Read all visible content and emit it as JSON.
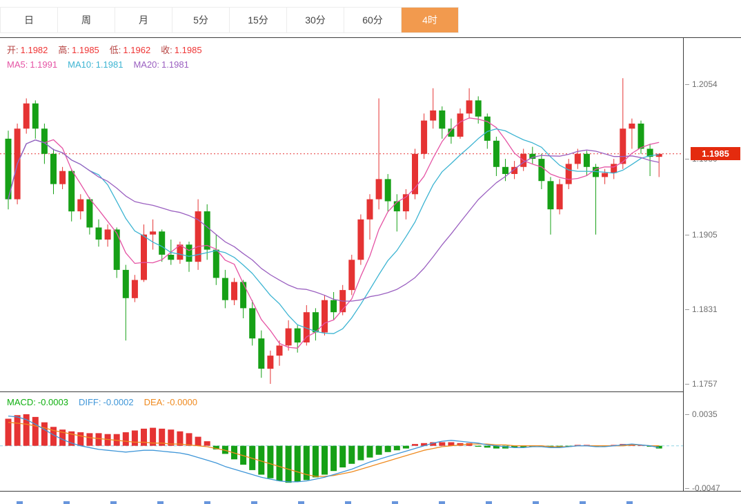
{
  "tabs": {
    "items": [
      {
        "id": "day",
        "label": "日",
        "active": false
      },
      {
        "id": "week",
        "label": "周",
        "active": false
      },
      {
        "id": "month",
        "label": "月",
        "active": false
      },
      {
        "id": "5min",
        "label": "5分",
        "active": false
      },
      {
        "id": "15min",
        "label": "15分",
        "active": false
      },
      {
        "id": "30min",
        "label": "30分",
        "active": false
      },
      {
        "id": "60min",
        "label": "60分",
        "active": false
      },
      {
        "id": "4hour",
        "label": "4时",
        "active": true
      }
    ]
  },
  "info": {
    "ohlc": [
      {
        "id": "open",
        "label": "开:",
        "value": "1.1982"
      },
      {
        "id": "high",
        "label": "高:",
        "value": "1.1985"
      },
      {
        "id": "low",
        "label": "低:",
        "value": "1.1962"
      },
      {
        "id": "close",
        "label": "收:",
        "value": "1.1985"
      }
    ],
    "ma": [
      {
        "id": "ma5",
        "label": "MA5:",
        "value": "1.1991",
        "color": "#e553a4"
      },
      {
        "id": "ma10",
        "label": "MA10:",
        "value": "1.1981",
        "color": "#3cb4d2"
      },
      {
        "id": "ma20",
        "label": "MA20:",
        "value": "1.1981",
        "color": "#9a5fc0"
      }
    ],
    "macd": [
      {
        "id": "macd",
        "label": "MACD:",
        "value": "-0.0003",
        "color": "#0faf0f"
      },
      {
        "id": "diff",
        "label": "DIFF:",
        "value": "-0.0002",
        "color": "#3f96d8"
      },
      {
        "id": "dea",
        "label": "DEA:",
        "value": "-0.0000",
        "color": "#ef8a1f"
      }
    ]
  },
  "axis": {
    "price_labels": [
      "1.2054",
      "1.1980",
      "1.1905",
      "1.1831",
      "1.1757"
    ],
    "current_price": "1.1985",
    "macd_labels": [
      "0.0035",
      "-0.0047"
    ]
  },
  "colors": {
    "up": "#e53333",
    "down": "#16a016",
    "info_label": "#b5413f",
    "info_value": "#ef3434",
    "price_line": "#e53333",
    "badge_bg": "#e42b0e",
    "tab_active_bg": "#f29a4e",
    "zero_line": "#8fd4e4",
    "diff": "#3f96d8",
    "dea": "#ef8a1f"
  },
  "chart_data": {
    "type": "candlestick",
    "timeframe": "4时",
    "legend": [
      "MA5",
      "MA10",
      "MA20"
    ],
    "ma_periods": [
      5,
      10,
      20
    ],
    "ma_colors": [
      "#e553a4",
      "#3cb4d2",
      "#9a5fc0"
    ],
    "price_line": 1.1985,
    "y_axis_ticks": [
      1.2054,
      1.198,
      1.1905,
      1.1831,
      1.1757
    ],
    "candles": [
      [
        1.2,
        1.2008,
        1.193,
        1.194
      ],
      [
        1.194,
        1.2015,
        1.1935,
        1.201
      ],
      [
        1.201,
        1.204,
        1.2005,
        1.2035
      ],
      [
        1.2035,
        1.2038,
        1.2,
        1.201
      ],
      [
        1.201,
        1.2015,
        1.1975,
        1.1985
      ],
      [
        1.1985,
        1.199,
        1.1945,
        1.1955
      ],
      [
        1.1955,
        1.1972,
        1.195,
        1.1968
      ],
      [
        1.1968,
        1.197,
        1.1918,
        1.1928
      ],
      [
        1.1928,
        1.1945,
        1.192,
        1.194
      ],
      [
        1.194,
        1.1942,
        1.1905,
        1.1912
      ],
      [
        1.1912,
        1.192,
        1.1893,
        1.19
      ],
      [
        1.19,
        1.1915,
        1.1893,
        1.191
      ],
      [
        1.191,
        1.1912,
        1.1862,
        1.187
      ],
      [
        1.187,
        1.1875,
        1.18,
        1.1842
      ],
      [
        1.1842,
        1.1865,
        1.1838,
        1.186
      ],
      [
        1.186,
        1.1915,
        1.1858,
        1.1905
      ],
      [
        1.1905,
        1.192,
        1.189,
        1.1908
      ],
      [
        1.1908,
        1.191,
        1.1878,
        1.1885
      ],
      [
        1.1885,
        1.19,
        1.1875,
        1.188
      ],
      [
        1.188,
        1.1898,
        1.1876,
        1.1895
      ],
      [
        1.1895,
        1.1898,
        1.1868,
        1.1878
      ],
      [
        1.1878,
        1.194,
        1.187,
        1.1928
      ],
      [
        1.1928,
        1.1935,
        1.188,
        1.189
      ],
      [
        1.189,
        1.1905,
        1.1855,
        1.1862
      ],
      [
        1.1862,
        1.187,
        1.1832,
        1.184
      ],
      [
        1.184,
        1.1862,
        1.1835,
        1.1858
      ],
      [
        1.1858,
        1.186,
        1.1822,
        1.1832
      ],
      [
        1.1832,
        1.184,
        1.1795,
        1.1802
      ],
      [
        1.1802,
        1.181,
        1.1763,
        1.1772
      ],
      [
        1.1772,
        1.179,
        1.1757,
        1.1785
      ],
      [
        1.1785,
        1.18,
        1.1775,
        1.1795
      ],
      [
        1.1795,
        1.182,
        1.179,
        1.1812
      ],
      [
        1.1812,
        1.1815,
        1.1788,
        1.1798
      ],
      [
        1.1798,
        1.1835,
        1.1795,
        1.1828
      ],
      [
        1.1828,
        1.1832,
        1.18,
        1.1808
      ],
      [
        1.1808,
        1.1845,
        1.1805,
        1.184
      ],
      [
        1.184,
        1.1848,
        1.182,
        1.1828
      ],
      [
        1.1828,
        1.1855,
        1.1825,
        1.185
      ],
      [
        1.185,
        1.1885,
        1.1845,
        1.188
      ],
      [
        1.188,
        1.1925,
        1.1875,
        1.192
      ],
      [
        1.192,
        1.1945,
        1.19,
        1.194
      ],
      [
        1.194,
        1.204,
        1.193,
        1.196
      ],
      [
        1.196,
        1.1965,
        1.1928,
        1.1938
      ],
      [
        1.1938,
        1.1945,
        1.1908,
        1.1928
      ],
      [
        1.1928,
        1.195,
        1.192,
        1.1945
      ],
      [
        1.1945,
        1.199,
        1.194,
        1.1985
      ],
      [
        1.1985,
        1.2025,
        1.198,
        1.2018
      ],
      [
        1.2018,
        1.205,
        1.201,
        1.2028
      ],
      [
        1.2028,
        1.2032,
        1.2,
        1.201
      ],
      [
        1.201,
        1.202,
        1.1995,
        1.2002
      ],
      [
        1.2002,
        1.203,
        1.2,
        1.2025
      ],
      [
        1.2025,
        1.205,
        1.202,
        1.2038
      ],
      [
        1.2038,
        1.2042,
        1.2015,
        1.2022
      ],
      [
        1.2022,
        1.2025,
        1.199,
        1.1998
      ],
      [
        1.1998,
        1.2002,
        1.1963,
        1.1972
      ],
      [
        1.1972,
        1.198,
        1.1958,
        1.1965
      ],
      [
        1.1965,
        1.1978,
        1.196,
        1.1972
      ],
      [
        1.1972,
        1.199,
        1.1968,
        1.1985
      ],
      [
        1.1985,
        1.1992,
        1.1975,
        1.198
      ],
      [
        1.198,
        1.1985,
        1.195,
        1.1958
      ],
      [
        1.1958,
        1.1962,
        1.1905,
        1.193
      ],
      [
        1.193,
        1.196,
        1.1925,
        1.1955
      ],
      [
        1.1955,
        1.198,
        1.195,
        1.1975
      ],
      [
        1.1975,
        1.199,
        1.197,
        1.1985
      ],
      [
        1.1985,
        1.1988,
        1.1963,
        1.1972
      ],
      [
        1.1972,
        1.1975,
        1.1905,
        1.1962
      ],
      [
        1.1962,
        1.197,
        1.1955,
        1.1966
      ],
      [
        1.1966,
        1.198,
        1.196,
        1.1975
      ],
      [
        1.1975,
        1.206,
        1.197,
        1.201
      ],
      [
        1.201,
        1.202,
        1.199,
        1.2015
      ],
      [
        1.2015,
        1.2018,
        1.1985,
        1.199
      ],
      [
        1.199,
        1.1995,
        1.1963,
        1.1982
      ],
      [
        1.1982,
        1.1985,
        1.1962,
        1.1985
      ]
    ],
    "macd": {
      "y_ticks": [
        0.0035,
        -0.0047
      ],
      "hist": [
        0.003,
        0.0034,
        0.0035,
        0.0032,
        0.0026,
        0.0021,
        0.0018,
        0.0016,
        0.0015,
        0.0014,
        0.0014,
        0.0013,
        0.0013,
        0.0015,
        0.0017,
        0.0019,
        0.002,
        0.0019,
        0.0018,
        0.0016,
        0.0014,
        0.001,
        0.0005,
        -0.0004,
        -0.0009,
        -0.0015,
        -0.0021,
        -0.0027,
        -0.0032,
        -0.0036,
        -0.0039,
        -0.0041,
        -0.004,
        -0.0038,
        -0.0035,
        -0.0032,
        -0.0028,
        -0.0024,
        -0.002,
        -0.0016,
        -0.0013,
        -0.001,
        -0.0007,
        -0.0005,
        -0.0003,
        0.0002,
        0.0003,
        0.0004,
        0.0004,
        0.0004,
        0.0003,
        0.0003,
        -0.0001,
        -0.0002,
        -0.0003,
        -0.0003,
        -0.0002,
        -0.0002,
        -0.0001,
        -0.0001,
        -0.0002,
        -0.0002,
        -0.0001,
        0.0001,
        0.0001,
        -0.0001,
        -0.0001,
        0.0001,
        0.0002,
        0.0002,
        0.0001,
        -0.0001,
        -0.0003
      ],
      "diff": [
        0.0033,
        0.0032,
        0.0029,
        0.0024,
        0.0018,
        0.0012,
        0.0007,
        0.0003,
        0.0,
        -0.0002,
        -0.0004,
        -0.0005,
        -0.0006,
        -0.0007,
        -0.0006,
        -0.0005,
        -0.0005,
        -0.0006,
        -0.0007,
        -0.0008,
        -0.001,
        -0.0013,
        -0.0016,
        -0.0019,
        -0.0023,
        -0.0026,
        -0.0029,
        -0.0032,
        -0.0035,
        -0.0037,
        -0.0039,
        -0.004,
        -0.004,
        -0.0039,
        -0.0037,
        -0.0035,
        -0.0032,
        -0.0029,
        -0.0026,
        -0.0022,
        -0.0018,
        -0.0015,
        -0.0012,
        -0.0009,
        -0.0006,
        -0.0003,
        0.0,
        0.0003,
        0.0005,
        0.0006,
        0.0005,
        0.0004,
        0.0003,
        0.0001,
        0.0,
        -0.0001,
        -0.0002,
        -0.0002,
        -0.0001,
        -0.0001,
        -0.0002,
        -0.0002,
        -0.0001,
        0.0,
        0.0,
        -0.0001,
        -0.0001,
        0.0,
        0.0001,
        0.0002,
        0.0001,
        0.0,
        -0.0002
      ],
      "dea": [
        0.0026,
        0.0025,
        0.0024,
        0.0022,
        0.002,
        0.0017,
        0.0015,
        0.0013,
        0.0011,
        0.0009,
        0.0008,
        0.0007,
        0.0006,
        0.0005,
        0.0004,
        0.0004,
        0.0003,
        0.0003,
        0.0002,
        0.0002,
        0.0001,
        0.0,
        -0.0001,
        -0.0003,
        -0.0005,
        -0.0008,
        -0.0011,
        -0.0014,
        -0.0017,
        -0.002,
        -0.0023,
        -0.0026,
        -0.0029,
        -0.0032,
        -0.0034,
        -0.0034,
        -0.0033,
        -0.0031,
        -0.0029,
        -0.0026,
        -0.0023,
        -0.002,
        -0.0017,
        -0.0014,
        -0.0011,
        -0.0008,
        -0.0005,
        -0.0003,
        -0.0001,
        0.0,
        0.0001,
        0.0002,
        0.0002,
        0.0002,
        0.0001,
        0.0001,
        0.0,
        0.0,
        0.0,
        0.0,
        -0.0001,
        -0.0001,
        -0.0001,
        0.0,
        0.0,
        0.0,
        0.0,
        0.0,
        0.0,
        0.0001,
        0.0001,
        0.0,
        0.0
      ]
    }
  }
}
